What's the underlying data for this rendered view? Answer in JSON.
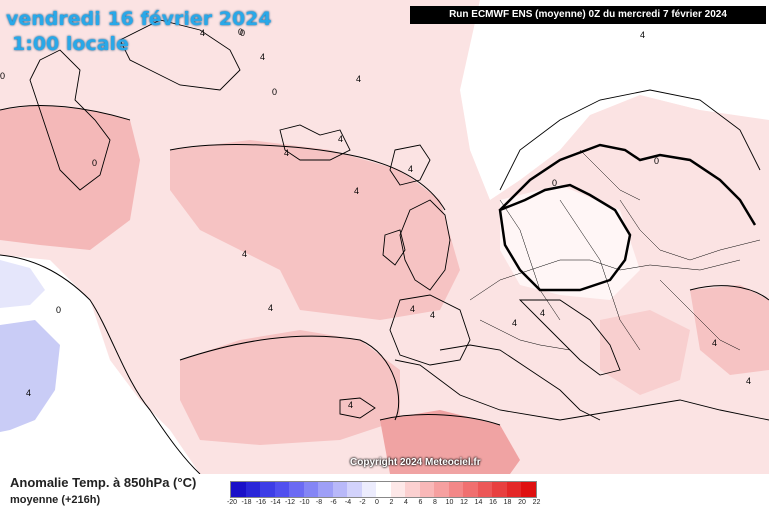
{
  "header": {
    "date": "vendredi 16 février 2024",
    "time": "1:00 locale",
    "run_info": "Run ECMWF ENS (moyenne) 0Z du mercredi 7 février 2024"
  },
  "copyright": "Copyright 2024 Meteociel.fr",
  "legend": {
    "title": "Anomalie Temp. à 850hPa (°C)",
    "subtitle": "moyenne   (+216h)",
    "ticks": [
      "-20",
      "-18",
      "-16",
      "-14",
      "-12",
      "-10",
      "-8",
      "-6",
      "-4",
      "-2",
      "0",
      "2",
      "4",
      "6",
      "8",
      "10",
      "12",
      "14",
      "16",
      "18",
      "20",
      "22"
    ],
    "colors": [
      "#1a10c8",
      "#2a26d8",
      "#3d3de6",
      "#5150ef",
      "#6b6af3",
      "#8485f5",
      "#9e9ff7",
      "#b8b8f9",
      "#d2d2fb",
      "#ececfd",
      "#ffffff",
      "#fde8e8",
      "#fbd0d0",
      "#f9b8b8",
      "#f6a0a0",
      "#f38888",
      "#f07070",
      "#ec5858",
      "#e84040",
      "#e42828",
      "#df1010"
    ]
  },
  "contour_labels": [
    "0",
    "4",
    "4",
    "4",
    "4",
    "4",
    "4",
    "4",
    "4",
    "0",
    "0",
    "4",
    "4",
    "4",
    "0",
    "4",
    "4",
    "0",
    "0",
    "0",
    "0",
    "4",
    "4",
    "4",
    "4",
    "4"
  ]
}
